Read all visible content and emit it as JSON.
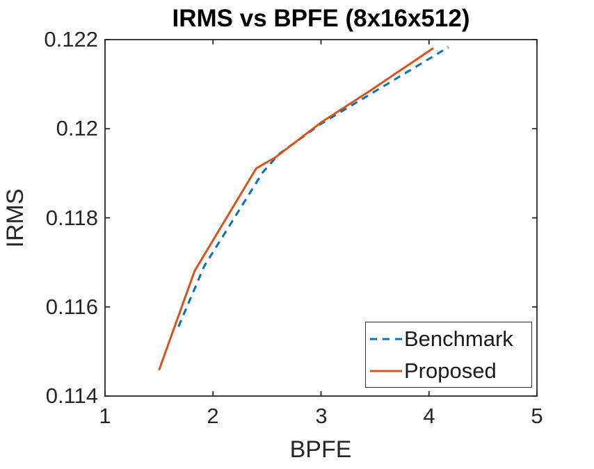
{
  "chart_data": {
    "type": "line",
    "title": "IRMS vs BPFE (8x16x512)",
    "xlabel": "BPFE",
    "ylabel": "IRMS",
    "xlim": [
      1,
      5
    ],
    "ylim": [
      0.114,
      0.122
    ],
    "x_ticks": [
      1,
      2,
      3,
      4,
      5
    ],
    "x_tick_labels": [
      "1",
      "2",
      "3",
      "4",
      "5"
    ],
    "y_ticks": [
      0.114,
      0.116,
      0.118,
      0.12,
      0.122
    ],
    "y_tick_labels": [
      "0.114",
      "0.116",
      "0.118",
      "0.12",
      "0.122"
    ],
    "grid": false,
    "axis_box": true,
    "axis_color": "#262626",
    "legend_position": "inside-bottom-right",
    "series": [
      {
        "name": "Benchmark",
        "color": "#0072BD",
        "line_style": "dashed",
        "x": [
          1.68,
          1.92,
          2.46,
          2.61,
          3.0,
          3.46,
          4.18
        ],
        "y": [
          0.11556,
          0.11692,
          0.11902,
          0.11943,
          0.12011,
          0.12078,
          0.12183
        ]
      },
      {
        "name": "Proposed",
        "color": "#D95319",
        "line_style": "solid",
        "x": [
          1.5,
          1.83,
          2.4,
          2.58,
          3.0,
          3.46,
          4.04
        ],
        "y": [
          0.11458,
          0.11681,
          0.11911,
          0.11936,
          0.12014,
          0.12086,
          0.12181
        ]
      }
    ]
  }
}
